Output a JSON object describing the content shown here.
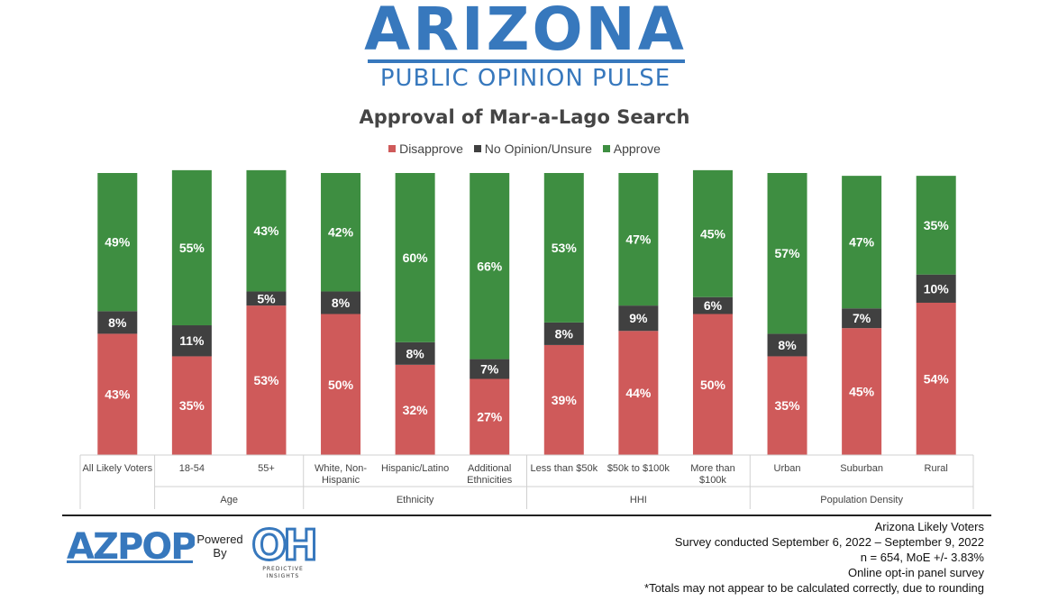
{
  "header": {
    "logo_title": "ARIZONA",
    "logo_subtitle": "PUBLIC OPINION PULSE"
  },
  "chart_data": {
    "type": "bar",
    "stacked": true,
    "title": "Approval of Mar-a-Lago Search",
    "legend_position": "top-center",
    "categories": [
      "All Likely Voters",
      "18-54",
      "55+",
      "White, Non-Hispanic",
      "Hispanic/Latino",
      "Additional Ethnicities",
      "Less than $50k",
      "$50k to $100k",
      "More than $100k",
      "Urban",
      "Suburban",
      "Rural"
    ],
    "category_lines": [
      [
        "All Likely Voters"
      ],
      [
        "18-54"
      ],
      [
        "55+"
      ],
      [
        "White, Non-",
        "Hispanic"
      ],
      [
        "Hispanic/Latino"
      ],
      [
        "Additional",
        "Ethnicities"
      ],
      [
        "Less than $50k"
      ],
      [
        "$50k to $100k"
      ],
      [
        "More than",
        "$100k"
      ],
      [
        "Urban"
      ],
      [
        "Suburban"
      ],
      [
        "Rural"
      ]
    ],
    "groups": [
      {
        "label": "",
        "start": 0,
        "end": 0
      },
      {
        "label": "Age",
        "start": 1,
        "end": 2
      },
      {
        "label": "Ethnicity",
        "start": 3,
        "end": 5
      },
      {
        "label": "HHI",
        "start": 6,
        "end": 8
      },
      {
        "label": "Population Density",
        "start": 9,
        "end": 11
      }
    ],
    "series": [
      {
        "name": "Disapprove",
        "color": "#cf5a5a",
        "values": [
          43,
          35,
          53,
          50,
          32,
          27,
          39,
          44,
          50,
          35,
          45,
          54
        ]
      },
      {
        "name": "No Opinion/Unsure",
        "color": "#404040",
        "values": [
          8,
          11,
          5,
          8,
          8,
          7,
          8,
          9,
          6,
          8,
          7,
          10
        ]
      },
      {
        "name": "Approve",
        "color": "#3e8e41",
        "values": [
          49,
          55,
          43,
          42,
          60,
          66,
          53,
          47,
          45,
          57,
          47,
          35
        ]
      }
    ],
    "value_suffix": "%",
    "ylim": [
      0,
      100
    ]
  },
  "footer": {
    "azpop_logo": "AZPOP",
    "powered_by": [
      "Powered",
      "By"
    ],
    "oh_logo": "OH",
    "oh_tagline": [
      "PREDICTIVE",
      "INSIGHTS"
    ],
    "notes": [
      "Arizona Likely Voters",
      "Survey conducted September 6, 2022 – September 9, 2022",
      "n = 654, MoE +/- 3.83%",
      "Online opt-in panel survey",
      "*Totals may not appear to be calculated correctly, due to rounding"
    ]
  }
}
